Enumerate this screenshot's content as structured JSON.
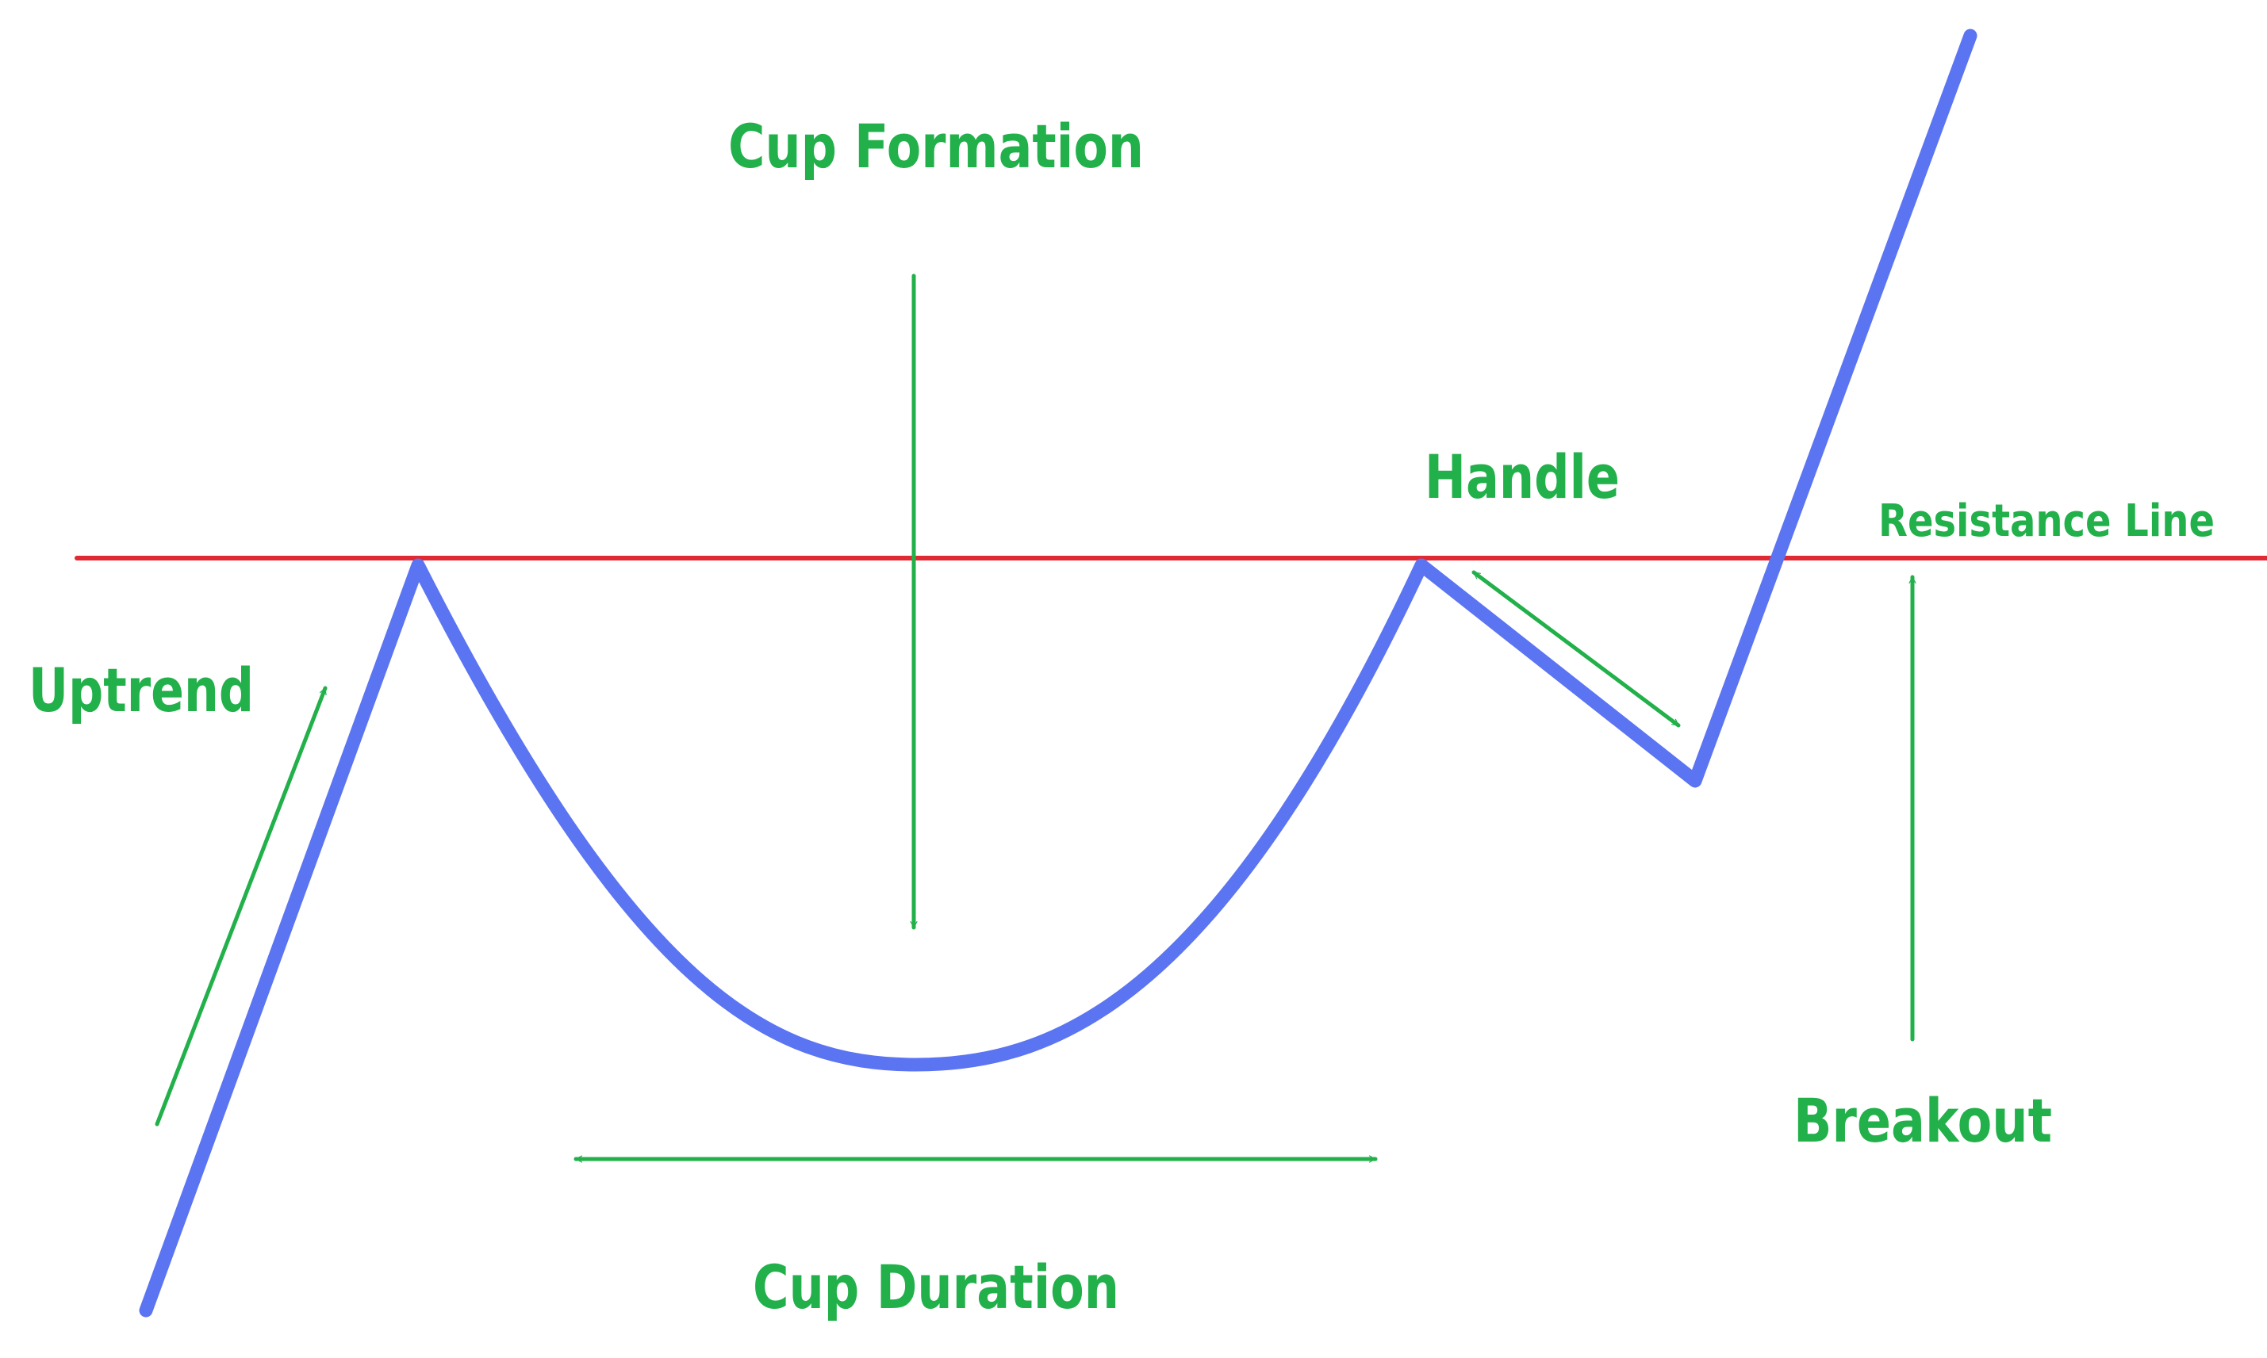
{
  "colors": {
    "price_line": "#5b74f2",
    "resistance_line": "#e02a33",
    "annotation": "#22b04a",
    "background": "#ffffff"
  },
  "labels": {
    "cup_formation": "Cup Formation",
    "handle": "Handle",
    "resistance_line": "Resistance Line",
    "uptrend": "Uptrend",
    "breakout": "Breakout",
    "cup_duration": "Cup Duration"
  }
}
